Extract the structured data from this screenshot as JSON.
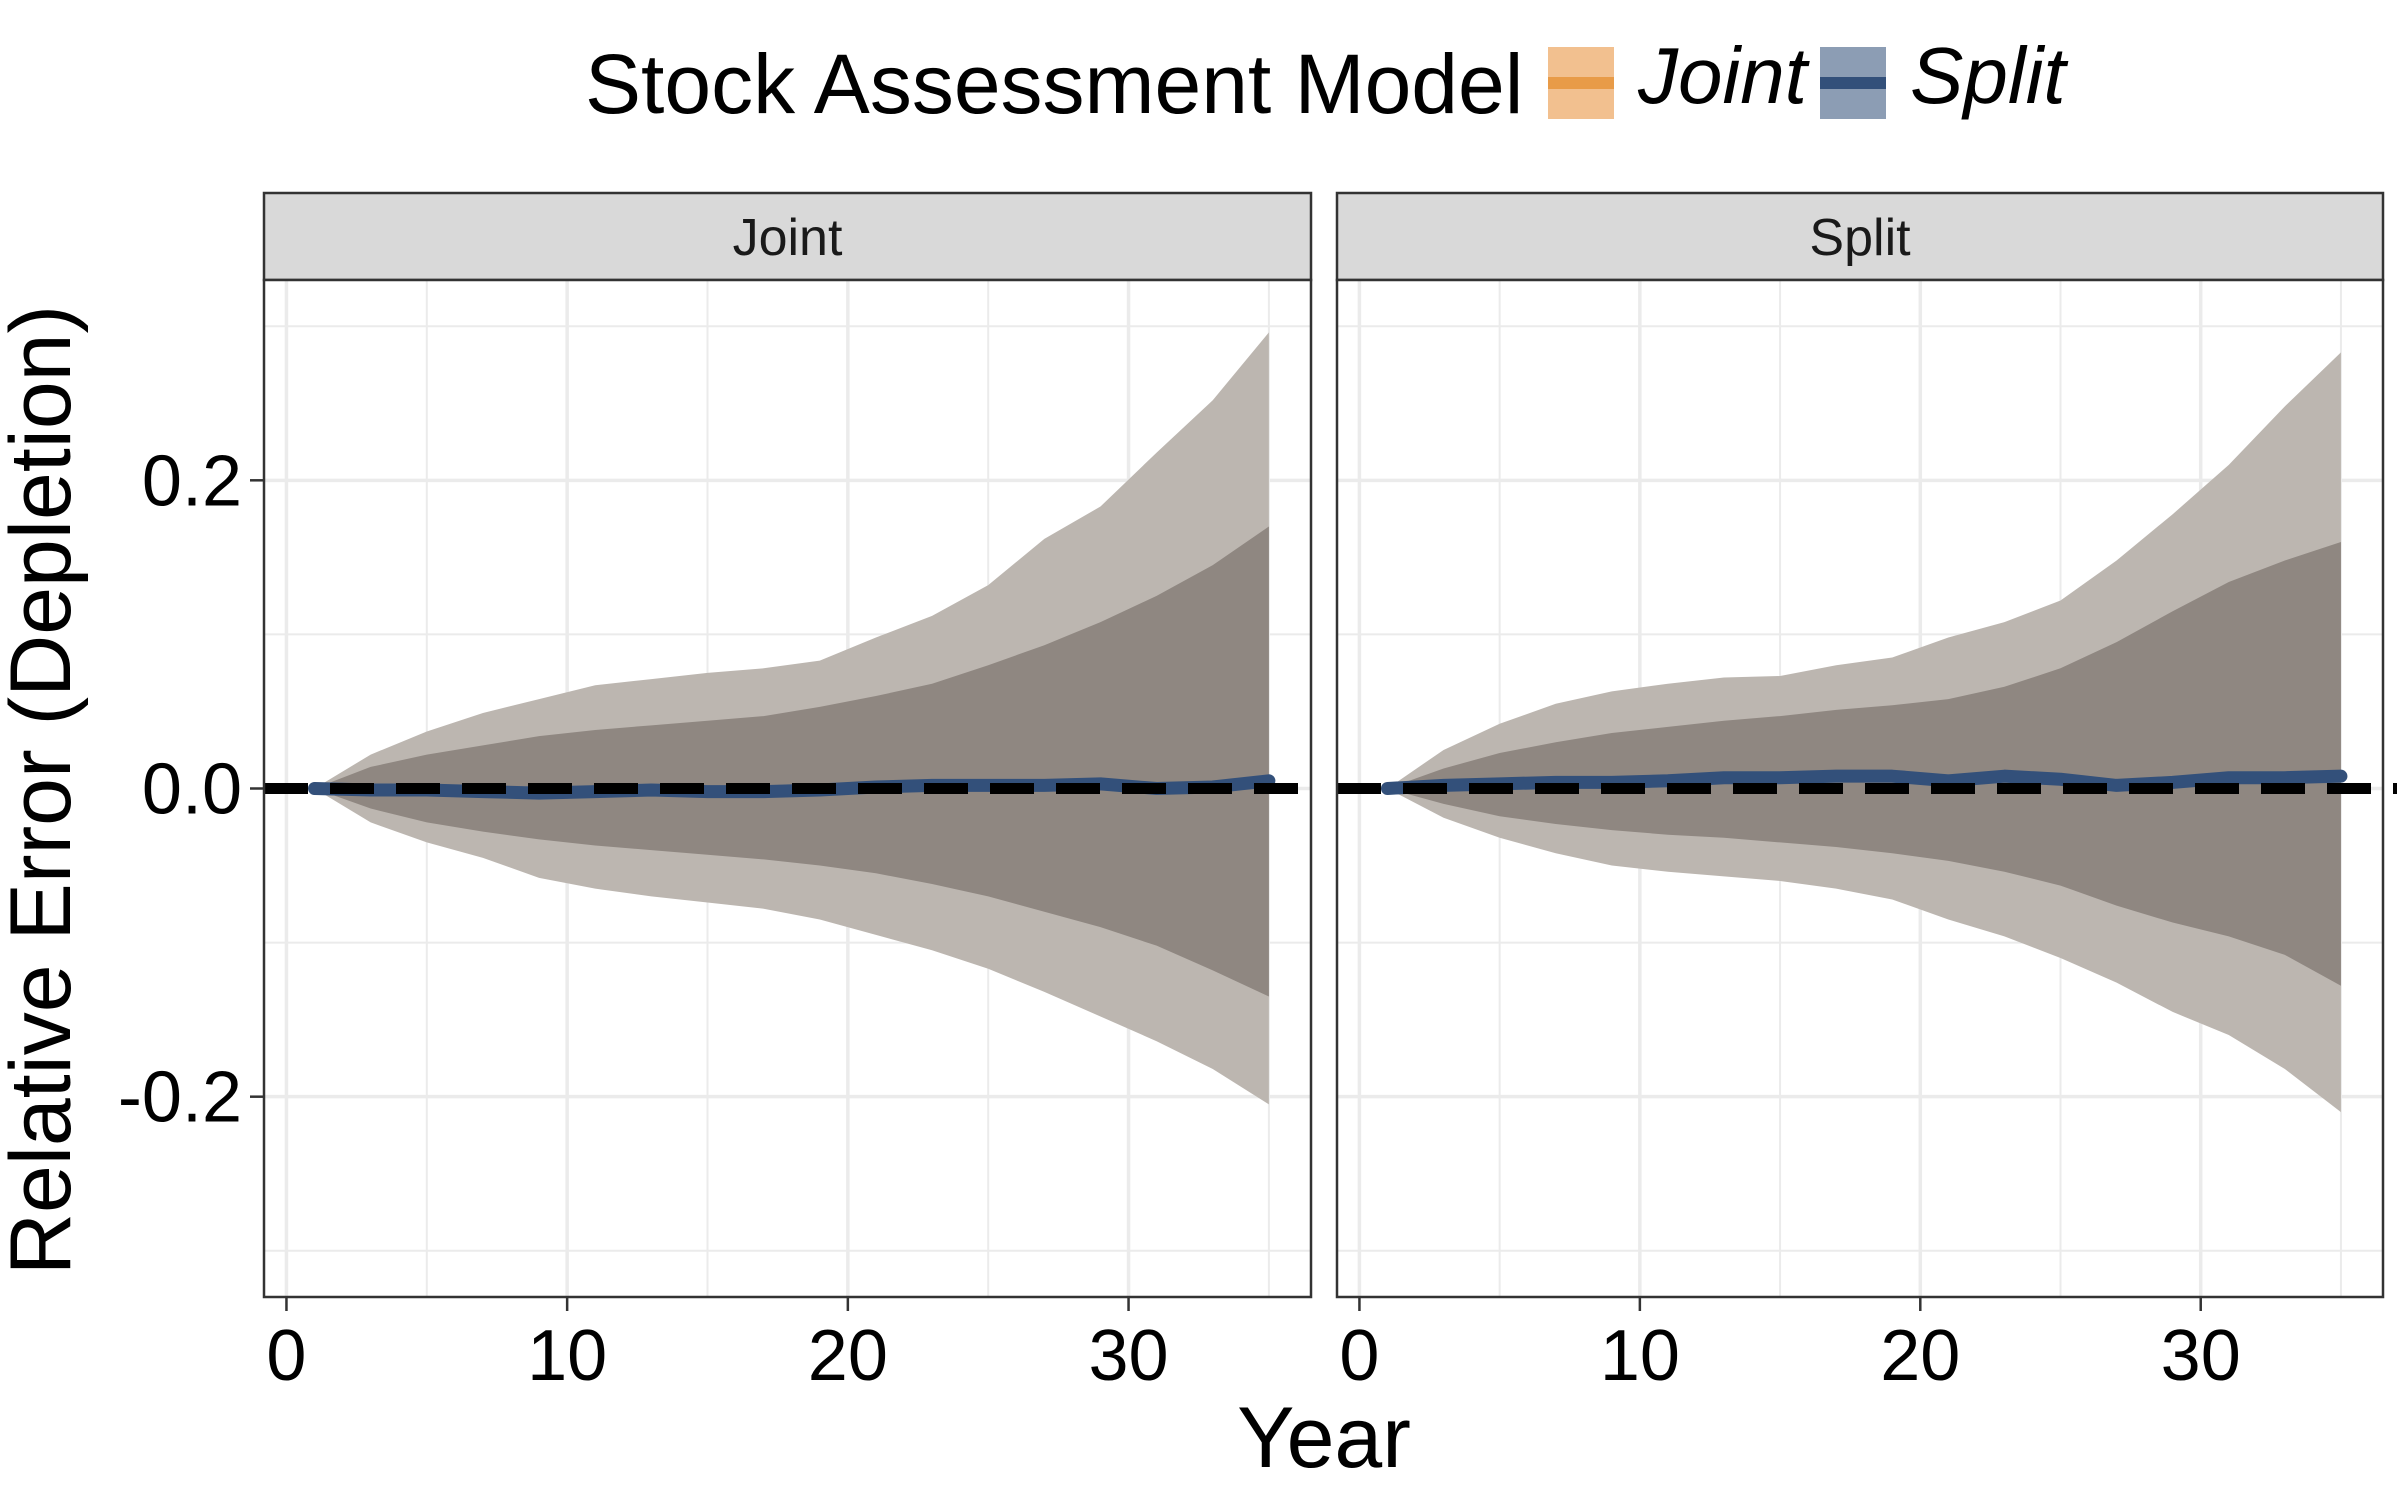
{
  "chart_data": {
    "type": "area",
    "legend": {
      "title": "Stock Assessment Model",
      "position": "top",
      "entries": [
        {
          "label": "Joint",
          "color": "#E89B48",
          "fill": "#F2C08F"
        },
        {
          "label": "Split",
          "color": "#33507A",
          "fill": "#8C9DB4"
        }
      ]
    },
    "xlabel": "Year",
    "ylabel": "Relative Error (Depletion)",
    "xlim": [
      -0.8,
      36.5
    ],
    "ylim": [
      -0.33,
      0.33
    ],
    "xticks": [
      0,
      10,
      20,
      30
    ],
    "xtick_labels": [
      "0",
      "10",
      "20",
      "30"
    ],
    "yticks": [
      -0.2,
      0.0,
      0.2
    ],
    "ytick_labels": [
      "-0.2",
      "0.0",
      "0.2"
    ],
    "grid": true,
    "reference_line": {
      "y": 0,
      "style": "dashed",
      "color": "#000000"
    },
    "colors": {
      "outer_band": "#BCB6B0",
      "inner_band": "#8F8781",
      "median_line": "#33507A",
      "strip_background": "#D9D9D9",
      "grid": "#EBEBEB"
    },
    "panels": [
      {
        "strip": "Joint",
        "x": [
          1,
          3,
          5,
          7,
          9,
          11,
          13,
          15,
          17,
          19,
          21,
          23,
          25,
          27,
          29,
          31,
          33,
          35
        ],
        "median": [
          0.0,
          -0.001,
          -0.001,
          -0.002,
          -0.003,
          -0.002,
          -0.001,
          -0.002,
          -0.002,
          -0.001,
          0.001,
          0.002,
          0.002,
          0.002,
          0.003,
          0.0,
          0.001,
          0.005
        ],
        "inner_lower": [
          0.0,
          -0.013,
          -0.022,
          -0.028,
          -0.033,
          -0.037,
          -0.04,
          -0.043,
          -0.046,
          -0.05,
          -0.055,
          -0.062,
          -0.07,
          -0.08,
          -0.09,
          -0.102,
          -0.118,
          -0.135
        ],
        "inner_upper": [
          0.0,
          0.014,
          0.022,
          0.028,
          0.034,
          0.038,
          0.041,
          0.044,
          0.047,
          0.053,
          0.06,
          0.068,
          0.08,
          0.093,
          0.108,
          0.125,
          0.145,
          0.17
        ],
        "outer_lower": [
          0.0,
          -0.022,
          -0.035,
          -0.045,
          -0.058,
          -0.065,
          -0.07,
          -0.074,
          -0.078,
          -0.085,
          -0.095,
          -0.105,
          -0.117,
          -0.132,
          -0.148,
          -0.164,
          -0.182,
          -0.205
        ],
        "outer_upper": [
          0.0,
          0.022,
          0.037,
          0.049,
          0.058,
          0.067,
          0.071,
          0.075,
          0.078,
          0.083,
          0.098,
          0.112,
          0.132,
          0.162,
          0.183,
          0.218,
          0.252,
          0.296
        ]
      },
      {
        "strip": "Split",
        "x": [
          1,
          3,
          5,
          7,
          9,
          11,
          13,
          15,
          17,
          19,
          21,
          23,
          25,
          27,
          29,
          31,
          33,
          35
        ],
        "median": [
          0.0,
          0.002,
          0.003,
          0.004,
          0.004,
          0.005,
          0.007,
          0.007,
          0.008,
          0.008,
          0.005,
          0.008,
          0.006,
          0.002,
          0.004,
          0.007,
          0.007,
          0.008
        ],
        "inner_lower": [
          0.0,
          -0.01,
          -0.018,
          -0.023,
          -0.027,
          -0.03,
          -0.032,
          -0.035,
          -0.038,
          -0.042,
          -0.047,
          -0.054,
          -0.063,
          -0.076,
          -0.087,
          -0.096,
          -0.108,
          -0.128
        ],
        "inner_upper": [
          0.0,
          0.013,
          0.023,
          0.03,
          0.036,
          0.04,
          0.044,
          0.047,
          0.051,
          0.054,
          0.058,
          0.066,
          0.078,
          0.095,
          0.115,
          0.134,
          0.148,
          0.16
        ],
        "outer_lower": [
          0.0,
          -0.019,
          -0.032,
          -0.042,
          -0.05,
          -0.054,
          -0.057,
          -0.06,
          -0.065,
          -0.072,
          -0.085,
          -0.096,
          -0.11,
          -0.126,
          -0.145,
          -0.16,
          -0.182,
          -0.21
        ],
        "outer_upper": [
          0.0,
          0.025,
          0.042,
          0.055,
          0.063,
          0.068,
          0.072,
          0.073,
          0.08,
          0.085,
          0.098,
          0.108,
          0.122,
          0.148,
          0.178,
          0.21,
          0.248,
          0.283
        ]
      }
    ]
  }
}
